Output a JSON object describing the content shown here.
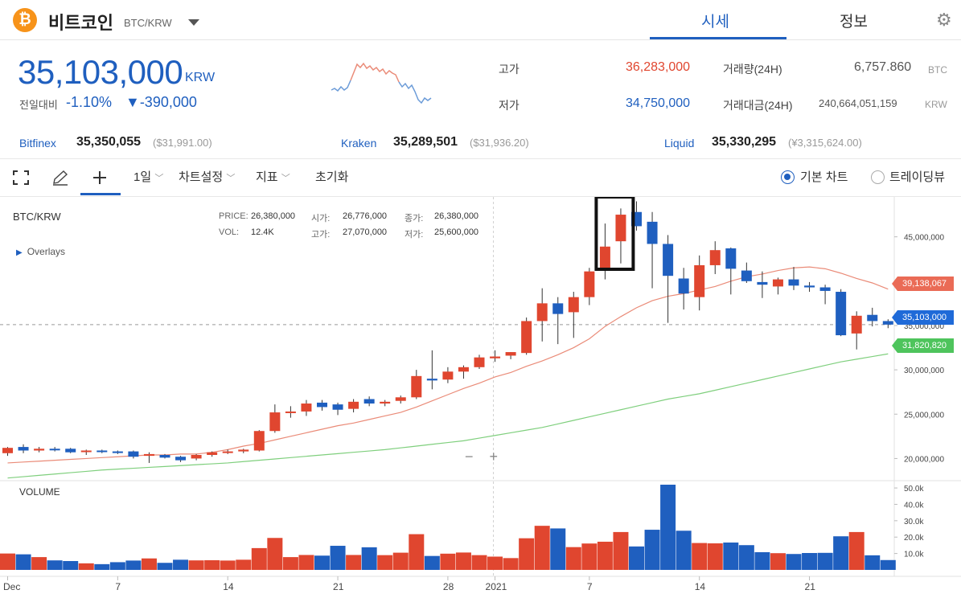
{
  "header": {
    "coin_symbol_glyph": "₿",
    "coin_name": "비트코인",
    "pair": "BTC/KRW",
    "tabs": [
      {
        "label": "시세",
        "active": true
      },
      {
        "label": "정보",
        "active": false
      }
    ],
    "settings_icon": "gear-icon"
  },
  "ticker": {
    "price": "35,103,000",
    "unit": "KRW",
    "change_label": "전일대비",
    "change_pct": "-1.10%",
    "change_abs": "▼-390,000",
    "high_label": "고가",
    "high": "36,283,000",
    "low_label": "저가",
    "low": "34,750,000",
    "volume_label": "거래량(24H)",
    "volume": "6,757.860",
    "volume_unit": "BTC",
    "turnover_label": "거래대금(24H)",
    "turnover": "240,664,051,159",
    "turnover_unit": "KRW",
    "colors": {
      "up": "#e0462f",
      "down": "#1f5fbf"
    }
  },
  "exchanges": [
    {
      "name": "Bitfinex",
      "value": "35,350,055",
      "sub": "($31,991.00)"
    },
    {
      "name": "Kraken",
      "value": "35,289,501",
      "sub": "($31,936.20)"
    },
    {
      "name": "Liquid",
      "value": "35,330,295",
      "sub": "(¥3,315,624.00)"
    }
  ],
  "toolbar": {
    "fullscreen_icon": "fullscreen-icon",
    "pencil_icon": "pencil-icon",
    "crosshair_icon": "crosshair-icon",
    "interval": "1일",
    "chart_settings": "차트설정",
    "indicators": "지표",
    "reset": "초기화",
    "basic_chart": "기본 차트",
    "tradingview": "트레이딩뷰"
  },
  "chart_info": {
    "symbol": "BTC/KRW",
    "price_label": "PRICE:",
    "price": "26,380,000",
    "vol_label": "VOL:",
    "vol": "12.4K",
    "open_label": "시가:",
    "open": "26,776,000",
    "close_label": "종가:",
    "close": "26,380,000",
    "high_label": "고가:",
    "high": "27,070,000",
    "low_label": "저가:",
    "low": "25,600,000",
    "overlays": "Overlays",
    "volume_title": "VOLUME"
  },
  "badges": {
    "ma_long": "39,138,067",
    "current": "35,103,000",
    "ma_short": "31,820,820"
  },
  "chart_data": {
    "type": "candlestick",
    "y_axis_ticks": [
      "45,000,000",
      "40,000,000",
      "35,000,000",
      "30,000,000",
      "25,000,000",
      "20,000,000"
    ],
    "ylim": [
      17500000,
      49500000
    ],
    "x_axis_ticks": [
      {
        "label": "Dec",
        "i": 0
      },
      {
        "label": "7",
        "i": 7
      },
      {
        "label": "14",
        "i": 14
      },
      {
        "label": "21",
        "i": 21
      },
      {
        "label": "28",
        "i": 28
      },
      {
        "label": "2021",
        "i": 31
      },
      {
        "label": "7",
        "i": 37
      },
      {
        "label": "14",
        "i": 44
      },
      {
        "label": "21",
        "i": 51
      }
    ],
    "volume_ticks": [
      "50.0k",
      "40.0k",
      "30.0k",
      "20.0k",
      "10.0k"
    ],
    "volume_max": 52000,
    "candles": [
      [
        20600000,
        21300000,
        20300000,
        21200000
      ],
      [
        21300000,
        21600000,
        20600000,
        20900000
      ],
      [
        20900000,
        21300000,
        20700000,
        21100000
      ],
      [
        21100000,
        21300000,
        20800000,
        21000000
      ],
      [
        21100000,
        21200000,
        20600000,
        20700000
      ],
      [
        20800000,
        21000000,
        20400000,
        20900000
      ],
      [
        20900000,
        21000000,
        20600000,
        20800000
      ],
      [
        20800000,
        20900000,
        20500000,
        20700000
      ],
      [
        20800000,
        20900000,
        20000000,
        20200000
      ],
      [
        20300000,
        20700000,
        19500000,
        20500000
      ],
      [
        20400000,
        20500000,
        20000000,
        20100000
      ],
      [
        20200000,
        20300000,
        19600000,
        19800000
      ],
      [
        20000000,
        20500000,
        19800000,
        20400000
      ],
      [
        20400000,
        20800000,
        20200000,
        20700000
      ],
      [
        20700000,
        21000000,
        20500000,
        20800000
      ],
      [
        20800000,
        21100000,
        20600000,
        21000000
      ],
      [
        20900000,
        23200000,
        20800000,
        23100000
      ],
      [
        23100000,
        26100000,
        22900000,
        25200000
      ],
      [
        25200000,
        25900000,
        24600000,
        25300000
      ],
      [
        25300000,
        26600000,
        24800000,
        26200000
      ],
      [
        26300000,
        26600000,
        25400000,
        25800000
      ],
      [
        26100000,
        26300000,
        24900000,
        25500000
      ],
      [
        25600000,
        26700000,
        25200000,
        26400000
      ],
      [
        26700000,
        27000000,
        25900000,
        26200000
      ],
      [
        26200000,
        26600000,
        25900000,
        26400000
      ],
      [
        26500000,
        27100000,
        26200000,
        26900000
      ],
      [
        26900000,
        30000000,
        26700000,
        29300000
      ],
      [
        29000000,
        32200000,
        27800000,
        28800000
      ],
      [
        28900000,
        30300000,
        28500000,
        29800000
      ],
      [
        29800000,
        30500000,
        29000000,
        30300000
      ],
      [
        30300000,
        31700000,
        30100000,
        31400000
      ],
      [
        31300000,
        32200000,
        30900000,
        31500000
      ],
      [
        31600000,
        32000000,
        31200000,
        32000000
      ],
      [
        31900000,
        35900000,
        31700000,
        35500000
      ],
      [
        35500000,
        39200000,
        33200000,
        37500000
      ],
      [
        37500000,
        38200000,
        32900000,
        36300000
      ],
      [
        36500000,
        38800000,
        33600000,
        38200000
      ],
      [
        38200000,
        41500000,
        37300000,
        41100000
      ],
      [
        41200000,
        46500000,
        40200000,
        43900000
      ],
      [
        44500000,
        48200000,
        42000000,
        47500000
      ],
      [
        47800000,
        49000000,
        45700000,
        46200000
      ],
      [
        46700000,
        47800000,
        39200000,
        44200000
      ],
      [
        44200000,
        45200000,
        35300000,
        40600000
      ],
      [
        40300000,
        41500000,
        36800000,
        38600000
      ],
      [
        38200000,
        42900000,
        36700000,
        41800000
      ],
      [
        41800000,
        44500000,
        40800000,
        43500000
      ],
      [
        43700000,
        43800000,
        38500000,
        41400000
      ],
      [
        41200000,
        42100000,
        39800000,
        40000000
      ],
      [
        39900000,
        41100000,
        38100000,
        39600000
      ],
      [
        39400000,
        40400000,
        38500000,
        40200000
      ],
      [
        40200000,
        41600000,
        39000000,
        39500000
      ],
      [
        39500000,
        39900000,
        38800000,
        39300000
      ],
      [
        39300000,
        39600000,
        37400000,
        38900000
      ],
      [
        38800000,
        39100000,
        33800000,
        33900000
      ],
      [
        34100000,
        36600000,
        32300000,
        36100000
      ],
      [
        36200000,
        37000000,
        34900000,
        35500000
      ],
      [
        35500000,
        35700000,
        34700000,
        35100000
      ]
    ],
    "volumes": [
      10000,
      9500,
      7800,
      5800,
      5400,
      4000,
      3500,
      4700,
      5700,
      7000,
      4300,
      6200,
      5800,
      5900,
      5700,
      6200,
      13300,
      19500,
      7800,
      9100,
      8700,
      14700,
      9100,
      13800,
      9000,
      10500,
      21800,
      8500,
      9900,
      10600,
      9000,
      8100,
      7200,
      19300,
      26900,
      25300,
      13900,
      16100,
      17200,
      23100,
      14300,
      24500,
      52000,
      23900,
      16400,
      16200,
      16700,
      15100,
      10800,
      10200,
      9700,
      10300,
      10400,
      20500,
      23100,
      8900,
      6000
    ],
    "ma_long": [
      19500000,
      19600000,
      19700000,
      19800000,
      19900000,
      20000000,
      20100000,
      20200000,
      20300000,
      20400000,
      20400000,
      20500000,
      20500000,
      20700000,
      21000000,
      21400000,
      21700000,
      22100000,
      22500000,
      22900000,
      23300000,
      23700000,
      24000000,
      24400000,
      24800000,
      25200000,
      25800000,
      26500000,
      27200000,
      27900000,
      28500000,
      29200000,
      29700000,
      30400000,
      31000000,
      31700000,
      32500000,
      33500000,
      34900000,
      36000000,
      37000000,
      37800000,
      38300000,
      38600000,
      39000000,
      39400000,
      40000000,
      40500000,
      40800000,
      41200000,
      41500000,
      41600000,
      41400000,
      40900000,
      40300000,
      39800000,
      39100000
    ],
    "ma_short": [
      17800000,
      17950000,
      18100000,
      18250000,
      18400000,
      18550000,
      18700000,
      18800000,
      18900000,
      19000000,
      19100000,
      19200000,
      19300000,
      19400000,
      19500000,
      19650000,
      19800000,
      19950000,
      20100000,
      20250000,
      20400000,
      20550000,
      20700000,
      20850000,
      21000000,
      21200000,
      21400000,
      21600000,
      21800000,
      22000000,
      22300000,
      22600000,
      22900000,
      23200000,
      23500000,
      23900000,
      24300000,
      24700000,
      25100000,
      25500000,
      25900000,
      26300000,
      26700000,
      27000000,
      27300000,
      27700000,
      28100000,
      28500000,
      28900000,
      29300000,
      29700000,
      30100000,
      30500000,
      30900000,
      31200000,
      31500000,
      31800000
    ]
  }
}
